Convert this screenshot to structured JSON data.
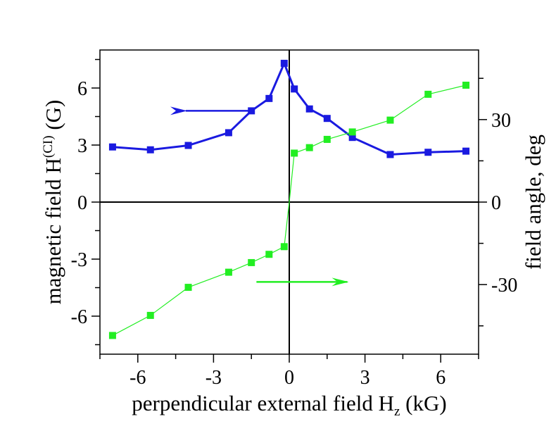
{
  "chart_data": {
    "type": "line",
    "title": "",
    "xlabel": {
      "main": "perpendicular external field H",
      "sub": "z",
      "unit": " (kG)"
    },
    "ylabel_left": {
      "main": "magnetic field H",
      "sup": "(CI)",
      "unit": " (G)"
    },
    "ylabel_right": "field angle, deg",
    "xlim": [
      -7.5,
      7.5
    ],
    "ylim_left": [
      -8,
      8
    ],
    "ylim_right": [
      -55.3,
      55.3
    ],
    "x_ticks": [
      -6,
      -3,
      0,
      3,
      6
    ],
    "x_tick_labels": [
      "-6",
      "-3",
      "0",
      "3",
      "6"
    ],
    "y_left_ticks": [
      -6,
      -3,
      0,
      3,
      6
    ],
    "y_left_tick_labels": [
      "-6",
      "-3",
      "0",
      "3",
      "6"
    ],
    "y_right_ticks": [
      -30,
      0,
      30
    ],
    "y_right_tick_labels": [
      "-30",
      "0",
      "30"
    ],
    "zero_lines": true,
    "grid": false,
    "series": [
      {
        "axis": "left",
        "color": "#1a1ae0",
        "marker": "square",
        "x": [
          -7.0,
          -5.5,
          -4.0,
          -2.4,
          -1.5,
          -0.8,
          -0.2,
          0.2,
          0.8,
          1.5,
          2.5,
          4.0,
          5.5,
          7.0
        ],
        "y": [
          2.9,
          2.75,
          2.98,
          3.65,
          4.8,
          5.45,
          7.3,
          5.95,
          4.9,
          4.4,
          3.4,
          2.5,
          2.62,
          2.68
        ]
      },
      {
        "axis": "right",
        "color": "#22ee22",
        "marker": "square",
        "x": [
          -7.0,
          -5.5,
          -4.0,
          -2.4,
          -1.5,
          -0.8,
          -0.2,
          0.0,
          0.2,
          0.8,
          1.5,
          2.5,
          4.0,
          5.5,
          7.0
        ],
        "y": [
          -48.5,
          -41.2,
          -31.0,
          -25.5,
          -22.0,
          -19.0,
          -16.2,
          0.0,
          17.8,
          19.8,
          22.8,
          25.5,
          29.8,
          39.2,
          42.5
        ]
      }
    ],
    "arrows": [
      {
        "color": "#1a1ae0",
        "from": [
          -1.5,
          4.8
        ],
        "to": [
          -4.1,
          4.8
        ]
      },
      {
        "color": "#22ee22",
        "from": [
          -1.3,
          -4.2
        ],
        "to": [
          2.3,
          -4.2
        ]
      }
    ]
  }
}
